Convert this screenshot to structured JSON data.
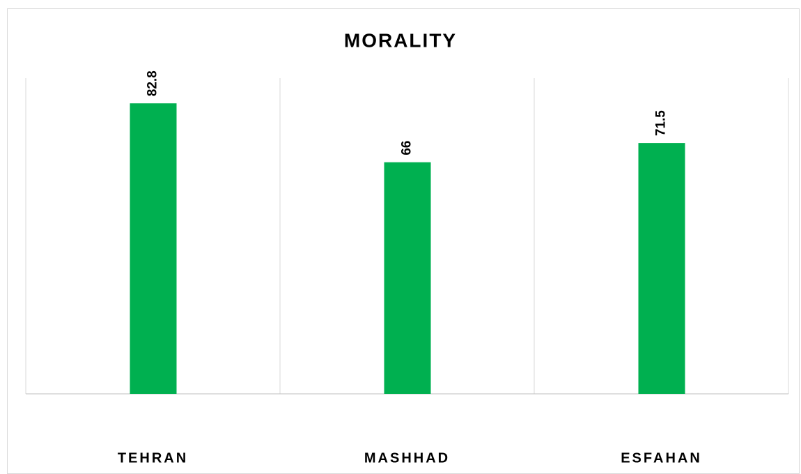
{
  "chart_data": {
    "type": "bar",
    "title": "MORALITY",
    "categories": [
      "TEHRAN",
      "MASHHAD",
      "ESFAHAN"
    ],
    "values": [
      82.8,
      66,
      71.5
    ],
    "color": "#00b050",
    "ylim": [
      0,
      90
    ],
    "data_labels": true
  }
}
